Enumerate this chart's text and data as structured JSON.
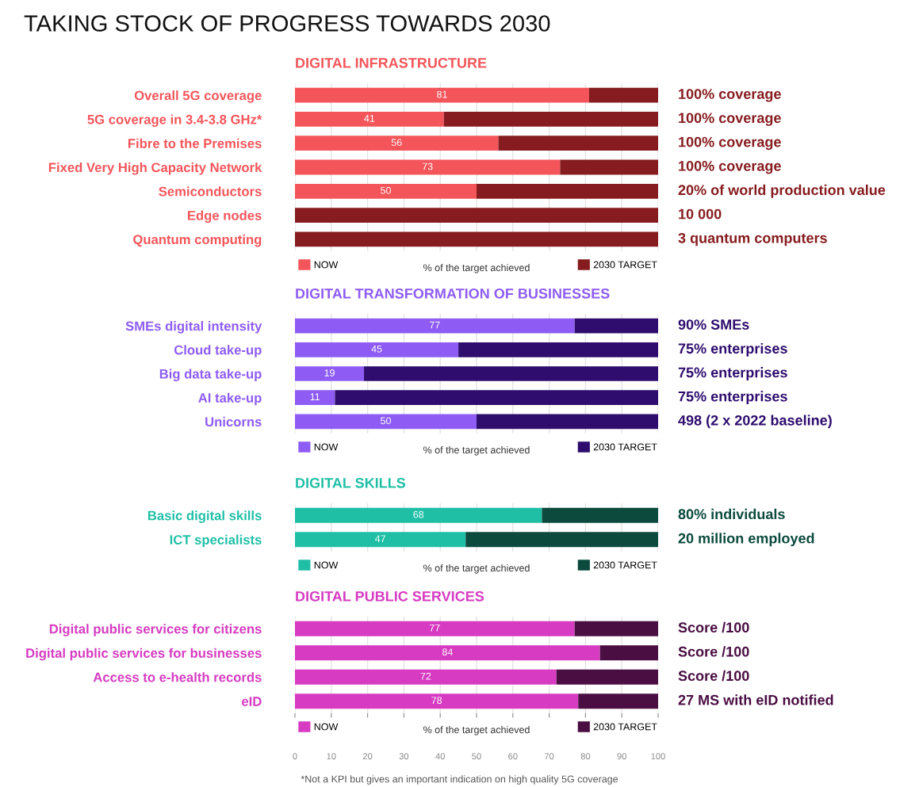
{
  "chart_data": [
    {
      "type": "bar",
      "orientation": "horizontal",
      "stacked": true,
      "title": "DIGITAL INFRASTRUCTURE",
      "xlabel": "% of the target achieved",
      "legend": "bottom",
      "grid": "x",
      "tick_labels": "y",
      "xlim": [
        0,
        100
      ],
      "xticks": [
        0,
        10,
        20,
        30,
        40,
        50,
        60,
        70,
        80,
        90,
        100
      ],
      "categories": [
        "Overall 5G coverage",
        "5G coverage in 3.4-3.8 GHz*",
        "Fibre to the Premises",
        "Fixed Very High Capacity Network",
        "Semiconductors",
        "Edge nodes",
        "Quantum computing"
      ],
      "series": [
        {
          "name": "NOW",
          "color": "#f4555a",
          "values": [
            81,
            41,
            56,
            73,
            50,
            0,
            0
          ],
          "value_labels": [
            "81",
            "41",
            "56",
            "73",
            "50",
            null,
            null
          ]
        },
        {
          "name": "2030 TARGET",
          "color": "#861c1f",
          "values": [
            19,
            59,
            44,
            27,
            50,
            100,
            100
          ]
        }
      ],
      "annotations": [
        "100% coverage",
        "100% coverage",
        "100% coverage",
        "100% coverage",
        "20% of world production value",
        "10 000",
        "3 quantum computers",
        "TAKING STOCK OF PROGRESS TOWARDS 2030"
      ]
    },
    {
      "type": "bar",
      "orientation": "horizontal",
      "stacked": true,
      "title": "DIGITAL TRANSFORMATION OF BUSINESSES",
      "xlabel": "% of the target achieved",
      "legend": "bottom",
      "grid": "x",
      "tick_labels": "y",
      "xlim": [
        0,
        100
      ],
      "xticks": [
        0,
        10,
        20,
        30,
        40,
        50,
        60,
        70,
        80,
        90,
        100
      ],
      "categories": [
        "SMEs digital intensity",
        "Cloud take-up",
        "Big data take-up",
        "AI take-up",
        "Unicorns"
      ],
      "series": [
        {
          "name": "NOW",
          "color": "#8e5cf4",
          "values": [
            77,
            45,
            19,
            11,
            50
          ],
          "value_labels": [
            "77",
            "45",
            "19",
            "11",
            "50"
          ]
        },
        {
          "name": "2030 TARGET",
          "color": "#2e0d6e",
          "values": [
            23,
            55,
            81,
            89,
            50
          ]
        }
      ],
      "annotations": [
        "90% SMEs",
        "75% enterprises",
        "75% enterprises",
        "75% enterprises",
        "498 (2 x 2022 baseline)"
      ]
    },
    {
      "type": "bar",
      "orientation": "horizontal",
      "stacked": true,
      "title": "DIGITAL SKILLS",
      "xlabel": "% of the target achieved",
      "legend": "bottom",
      "grid": "x",
      "tick_labels": "y",
      "xlim": [
        0,
        100
      ],
      "xticks": [
        0,
        10,
        20,
        30,
        40,
        50,
        60,
        70,
        80,
        90,
        100
      ],
      "categories": [
        "Basic digital skills",
        "ICT specialists"
      ],
      "series": [
        {
          "name": "NOW",
          "color": "#1fbfa6",
          "values": [
            68,
            47
          ],
          "value_labels": [
            "68",
            "47"
          ]
        },
        {
          "name": "2030 TARGET",
          "color": "#0b4a3d",
          "values": [
            32,
            53
          ]
        }
      ],
      "annotations": [
        "80% individuals",
        "20 million employed"
      ]
    },
    {
      "type": "bar",
      "orientation": "horizontal",
      "stacked": true,
      "title": "DIGITAL PUBLIC SERVICES",
      "xlabel": "% of the target achieved",
      "legend": "bottom",
      "grid": "x",
      "xlim": [
        0,
        100
      ],
      "xticks": [
        0,
        10,
        20,
        30,
        40,
        50,
        60,
        70,
        80,
        90,
        100
      ],
      "categories": [
        "Digital public services for citizens",
        "Digital public services for businesses",
        "Access to e-health records",
        "eID"
      ],
      "series": [
        {
          "name": "NOW",
          "color": "#d63bc1",
          "values": [
            77,
            84,
            72,
            78
          ],
          "value_labels": [
            "77",
            "84",
            "72",
            "78"
          ]
        },
        {
          "name": "2030 TARGET",
          "color": "#4a0e42",
          "values": [
            23,
            16,
            28,
            22
          ]
        }
      ],
      "annotations": [
        "Score /100",
        "Score /100",
        "Score /100",
        "27 MS with eID notified",
        "*Not a KPI but gives an important indication on high quality 5G coverage"
      ]
    }
  ]
}
